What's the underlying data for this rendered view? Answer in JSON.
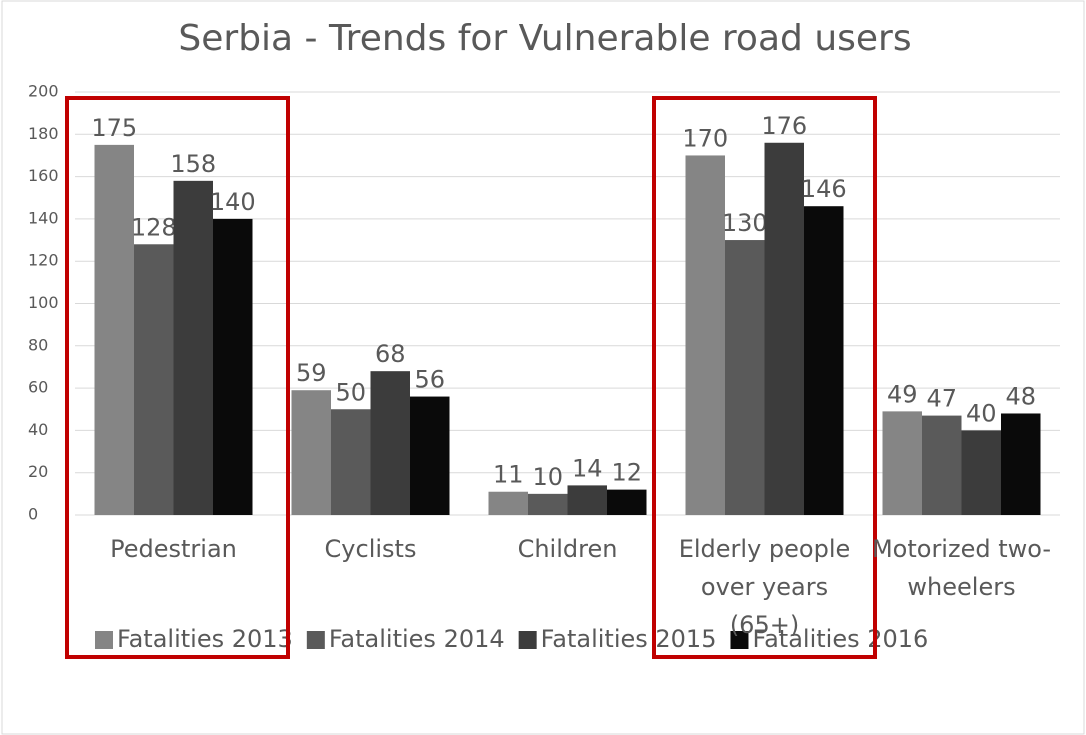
{
  "chart_data": {
    "type": "bar",
    "title": "Serbia - Trends for Vulnerable road users",
    "categories": [
      "Pedestrian",
      "Cyclists",
      "Children",
      "Elderly people over years (65+)",
      "Motorized two-wheelers"
    ],
    "series": [
      {
        "name": "Fatalities 2013",
        "color": "#858585",
        "values": [
          175,
          59,
          11,
          170,
          49
        ]
      },
      {
        "name": "Fatalities 2014",
        "color": "#5a5a5a",
        "values": [
          128,
          50,
          10,
          130,
          47
        ]
      },
      {
        "name": "Fatalities 2015",
        "color": "#3c3c3c",
        "values": [
          158,
          68,
          14,
          176,
          40
        ]
      },
      {
        "name": "Fatalities 2016",
        "color": "#0a0a0a",
        "values": [
          140,
          56,
          12,
          146,
          48
        ]
      }
    ],
    "ylim": [
      0,
      200
    ],
    "yticks": [
      0,
      20,
      40,
      60,
      80,
      100,
      120,
      140,
      160,
      180,
      200
    ],
    "grid": true,
    "legend": "bottom"
  }
}
